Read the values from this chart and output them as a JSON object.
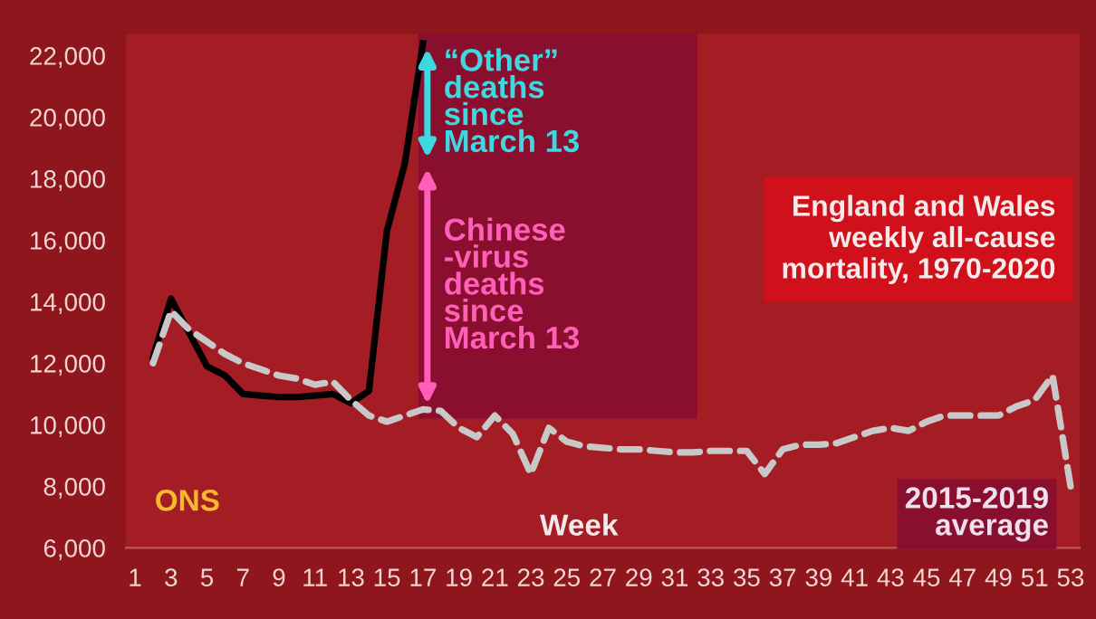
{
  "chart_data": {
    "type": "line",
    "title": "England and Wales weekly all-cause mortality, 1970-2020",
    "xlabel": "Week",
    "annotations": [
      {
        "text": "“Other” deaths since March 13",
        "x": 17,
        "y": 22400
      },
      {
        "text": "Chinese -virus deaths since March 13",
        "x": 17,
        "y": 10500
      },
      "ONS"
    ],
    "series": [
      {
        "color": "#000000",
        "line_style": "solid",
        "x": [
          2,
          3,
          4,
          5,
          6,
          7,
          8,
          9,
          10,
          11,
          12,
          13,
          14,
          15,
          16,
          17
        ],
        "values": [
          12200,
          14100,
          13000,
          11900,
          11600,
          11000,
          10950,
          10900,
          10900,
          10950,
          11000,
          10700,
          11100,
          16300,
          18500,
          22400
        ]
      },
      {
        "name": "2015-2019 average",
        "color": "#c8c8c8",
        "line_style": "dashed",
        "x": [
          2,
          3,
          4,
          5,
          6,
          7,
          8,
          9,
          10,
          11,
          12,
          13,
          14,
          15,
          16,
          17,
          18,
          19,
          20,
          21,
          22,
          23,
          24,
          25,
          26,
          27,
          28,
          29,
          30,
          31,
          32,
          33,
          34,
          35,
          36,
          37,
          38,
          39,
          40,
          41,
          42,
          43,
          44,
          45,
          46,
          47,
          48,
          49,
          50,
          51,
          52,
          53
        ],
        "values": [
          12000,
          13700,
          13100,
          12700,
          12300,
          12000,
          11800,
          11600,
          11500,
          11300,
          11400,
          10800,
          10300,
          10100,
          10300,
          10500,
          10450,
          9900,
          9600,
          10300,
          9700,
          8400,
          9900,
          9450,
          9300,
          9250,
          9200,
          9200,
          9150,
          9100,
          9100,
          9150,
          9150,
          9150,
          8400,
          9200,
          9350,
          9350,
          9400,
          9600,
          9800,
          9900,
          9800,
          10100,
          10300,
          10300,
          10300,
          10300,
          10600,
          10800,
          11600,
          8000
        ]
      }
    ],
    "xlim": [
      0.5,
      53.5
    ],
    "xticks": [
      1,
      3,
      5,
      7,
      9,
      11,
      13,
      15,
      17,
      19,
      21,
      23,
      25,
      27,
      29,
      31,
      33,
      35,
      37,
      39,
      41,
      43,
      45,
      47,
      49,
      51,
      53
    ],
    "ylim": [
      6000,
      22700
    ],
    "yticks": [
      {
        "value": 6000,
        "label": "6,000"
      },
      {
        "value": 8000,
        "label": "8,000"
      },
      {
        "value": 10000,
        "label": "10,000"
      },
      {
        "value": 12000,
        "label": "12,000"
      },
      {
        "value": 14000,
        "label": "14,000"
      },
      {
        "value": 16000,
        "label": "16,000"
      },
      {
        "value": 18000,
        "label": "18,000"
      },
      {
        "value": 20000,
        "label": "20,000"
      },
      {
        "value": 22000,
        "label": "22,000"
      }
    ],
    "grid": false,
    "legend": false,
    "marker": "none"
  }
}
